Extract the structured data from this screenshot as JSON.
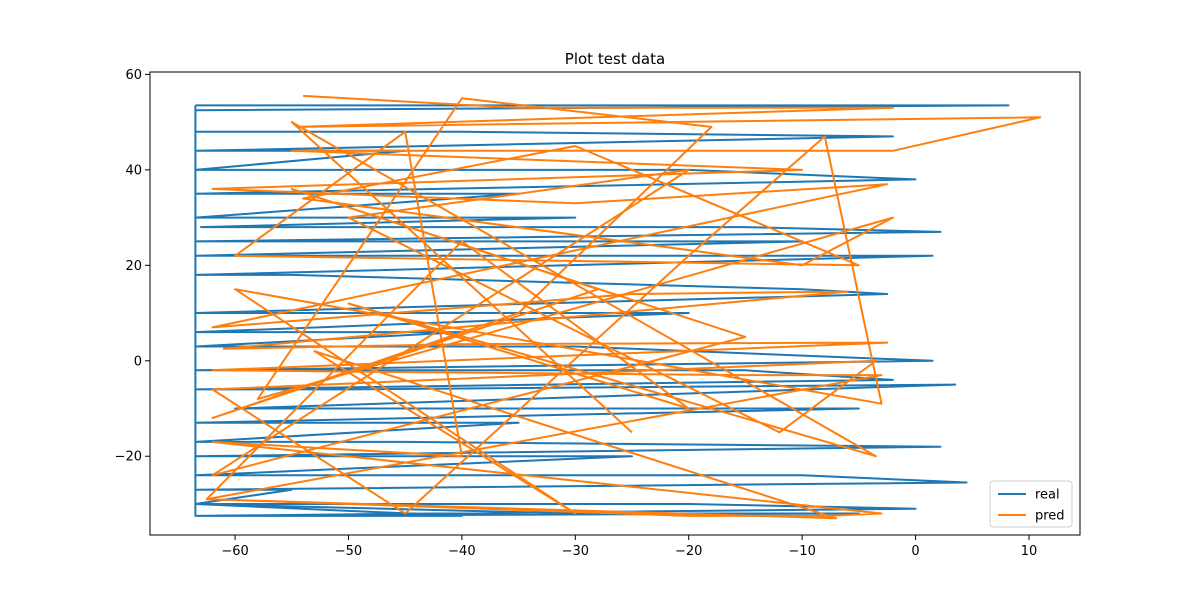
{
  "chart_data": {
    "type": "line",
    "title": "Plot test data",
    "xlabel": "",
    "ylabel": "",
    "xlim": [
      -67.5,
      14.5
    ],
    "ylim": [
      -36.5,
      60.5
    ],
    "xticks": [
      -60,
      -50,
      -40,
      -30,
      -20,
      -10,
      0,
      10
    ],
    "yticks": [
      -20,
      0,
      20,
      40,
      60
    ],
    "grid": false,
    "legend_position": "lower-right",
    "series": [
      {
        "name": "real",
        "color": "#1f77b4",
        "x": [
          -63.5,
          -5,
          8.2,
          -63.5,
          -63.5,
          -40,
          -2,
          -63.5,
          -45,
          -63.5,
          -20,
          0,
          -63.5,
          -35,
          -63.5,
          -30,
          -63,
          -15,
          2.2,
          -63.5,
          -10,
          -63.5,
          -25,
          1.5,
          -63.5,
          -55,
          -10,
          -2.5,
          -63.5,
          -20,
          -63.5,
          -40,
          -63.5,
          -30,
          1.5,
          -63.5,
          -15,
          -2,
          -63.5,
          -50,
          3.5,
          -60,
          -5,
          -63.5,
          -35,
          -63.5,
          -45,
          2.2,
          -63.5,
          -25,
          -63.5,
          -10,
          4.5,
          -63.5,
          -55,
          -63.5,
          -20,
          0,
          -63.5,
          -40,
          -63.5,
          -30,
          -5,
          -63.5,
          -63.5
        ],
        "y": [
          53.5,
          53.5,
          53.5,
          52.5,
          48,
          48,
          47,
          44,
          44,
          40,
          40,
          38,
          35,
          35,
          30,
          30,
          28,
          28,
          27,
          25,
          25,
          22,
          22,
          22,
          18,
          18,
          15,
          14,
          10,
          10,
          6,
          6,
          3,
          3,
          0,
          -2,
          -2,
          -4,
          -6,
          -6,
          -5,
          -10,
          -10,
          -13,
          -13,
          -17,
          -17,
          -18,
          -20,
          -20,
          -24,
          -24,
          -25.5,
          -27,
          -27,
          -30,
          -30,
          -31,
          -32.5,
          -32.5,
          -30,
          -32,
          -32,
          -32.5,
          53.5
        ]
      },
      {
        "name": "pred",
        "color": "#ff7f0e",
        "x": [
          -54,
          -35,
          -8,
          -2,
          -54.5,
          11,
          -2,
          -55,
          -10,
          -62,
          -30,
          -2.5,
          -62,
          -25,
          -6,
          -61,
          -40,
          -2.5,
          -62,
          -15,
          -3,
          -62.5,
          -50,
          -20,
          -8,
          -3,
          -62,
          -40,
          -45,
          -60,
          -5,
          -30,
          -54,
          -10,
          -2,
          -58,
          -40,
          -18,
          -35,
          -62,
          -28,
          -55,
          -15,
          -62,
          -20,
          -50,
          -12,
          -3.5,
          -62,
          -45,
          -20,
          -8,
          -3,
          -60,
          -30,
          -53,
          -7,
          -62.5,
          -40,
          -20,
          -50,
          -3.5,
          -55,
          -25
        ],
        "y": [
          55.5,
          53,
          53,
          53,
          49,
          51,
          44,
          44,
          40,
          36,
          33,
          37,
          7,
          14,
          14.5,
          2.5,
          3.5,
          3.8,
          -2,
          -3,
          -3,
          -29,
          -30,
          -32.5,
          -32.5,
          -32,
          -17,
          -20,
          48,
          22,
          20,
          45,
          34,
          20,
          30,
          -8,
          55,
          49,
          10,
          -12,
          15,
          36,
          5,
          -24,
          40,
          30,
          -15,
          0,
          -6,
          -32,
          22,
          47,
          -9,
          15,
          -32,
          2,
          -33,
          -29,
          25,
          -10,
          12,
          -20,
          50,
          -15
        ]
      }
    ]
  }
}
